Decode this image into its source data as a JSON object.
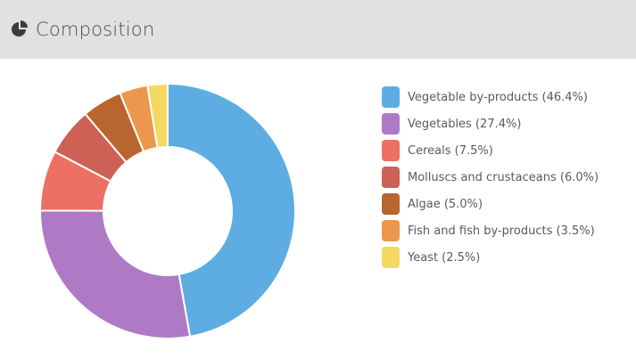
{
  "header": {
    "title": "Composition",
    "icon": "pie-chart-icon"
  },
  "chart_data": {
    "type": "pie",
    "style": "donut",
    "legend_position": "right",
    "categories": [
      "Vegetable by-products",
      "Vegetables",
      "Cereals",
      "Molluscs and crustaceans",
      "Algae",
      "Fish and fish by-products",
      "Yeast"
    ],
    "values": [
      46.4,
      27.4,
      7.5,
      6.0,
      5.0,
      3.5,
      2.5
    ],
    "colors": [
      "#5dade2",
      "#af7ac5",
      "#ec7063",
      "#cd6155",
      "#b9652f",
      "#eb984e",
      "#f4d862"
    ],
    "legend_labels": [
      "Vegetable by-products (46.4%)",
      "Vegetables (27.4%)",
      "Cereals (7.5%)",
      "Molluscs and crustaceans (6.0%)",
      "Algae (5.0%)",
      "Fish and fish by-products (3.5%)",
      "Yeast (2.5%)"
    ]
  }
}
